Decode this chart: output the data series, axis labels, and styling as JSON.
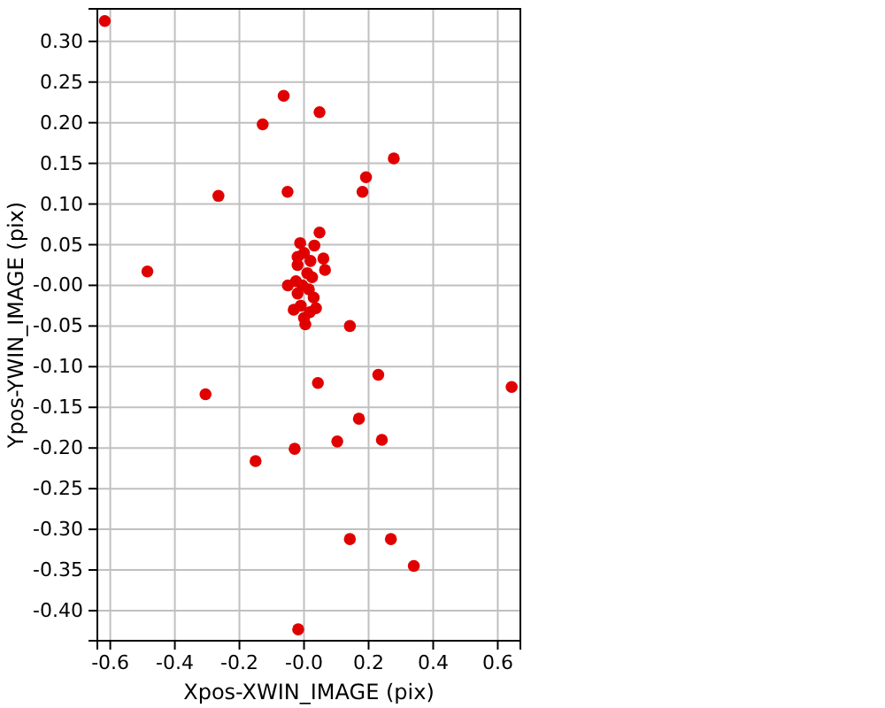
{
  "chart_data": {
    "type": "scatter",
    "xlabel": "Xpos-XWIN_IMAGE (pix)",
    "ylabel": "Ypos-YWIN_IMAGE (pix)",
    "xlim": [
      -0.64,
      0.67
    ],
    "ylim": [
      -0.437,
      0.34
    ],
    "xticks": [
      {
        "value": -0.6,
        "label": "-0.6"
      },
      {
        "value": -0.4,
        "label": "-0.4"
      },
      {
        "value": -0.2,
        "label": "-0.2"
      },
      {
        "value": 0,
        "label": "-0.0"
      },
      {
        "value": 0.2,
        "label": "0.2"
      },
      {
        "value": 0.4,
        "label": "0.4"
      },
      {
        "value": 0.6,
        "label": "0.6"
      }
    ],
    "yticks": [
      {
        "value": 0.3,
        "label": "0.30"
      },
      {
        "value": 0.25,
        "label": "0.25"
      },
      {
        "value": 0.2,
        "label": "0.20"
      },
      {
        "value": 0.15,
        "label": "0.15"
      },
      {
        "value": 0.1,
        "label": "0.10"
      },
      {
        "value": 0.05,
        "label": "0.05"
      },
      {
        "value": 0,
        "label": "-0.00"
      },
      {
        "value": -0.05,
        "label": "-0.05"
      },
      {
        "value": -0.1,
        "label": "-0.10"
      },
      {
        "value": -0.15,
        "label": "-0.15"
      },
      {
        "value": -0.2,
        "label": "-0.20"
      },
      {
        "value": -0.25,
        "label": "-0.25"
      },
      {
        "value": -0.3,
        "label": "-0.30"
      },
      {
        "value": -0.35,
        "label": "-0.35"
      },
      {
        "value": -0.4,
        "label": "-0.40"
      }
    ],
    "grid": true,
    "marker": "circle",
    "legend": false,
    "series": [
      {
        "color": "#e00000",
        "x": [
          -0.617,
          -0.063,
          0.048,
          -0.128,
          0.278,
          0.192,
          0.181,
          -0.051,
          -0.265,
          -0.485,
          0.048,
          0.142,
          0.004,
          -0.012,
          0.032,
          0.06,
          0.065,
          -0.05,
          -0.032,
          0.037,
          -0.02,
          0.0,
          0.02,
          0.01,
          0.025,
          -0.025,
          -0.005,
          0.015,
          -0.02,
          -0.01,
          0.03,
          -0.02,
          0.0,
          0.018,
          -0.305,
          0.043,
          0.23,
          0.643,
          0.17,
          0.103,
          0.241,
          -0.029,
          -0.15,
          0.142,
          0.269,
          0.34,
          -0.018
        ],
        "values": [
          0.325,
          0.233,
          0.213,
          0.198,
          0.156,
          0.133,
          0.115,
          0.115,
          0.11,
          0.017,
          0.065,
          -0.05,
          -0.048,
          0.052,
          0.049,
          0.033,
          0.019,
          0.0,
          -0.03,
          -0.028,
          0.035,
          0.04,
          0.03,
          0.015,
          0.01,
          0.005,
          0.0,
          -0.005,
          -0.01,
          -0.025,
          -0.015,
          0.025,
          -0.04,
          -0.033,
          -0.134,
          -0.12,
          -0.11,
          -0.125,
          -0.164,
          -0.192,
          -0.19,
          -0.201,
          -0.216,
          -0.312,
          -0.312,
          -0.345,
          -0.423
        ]
      }
    ]
  }
}
